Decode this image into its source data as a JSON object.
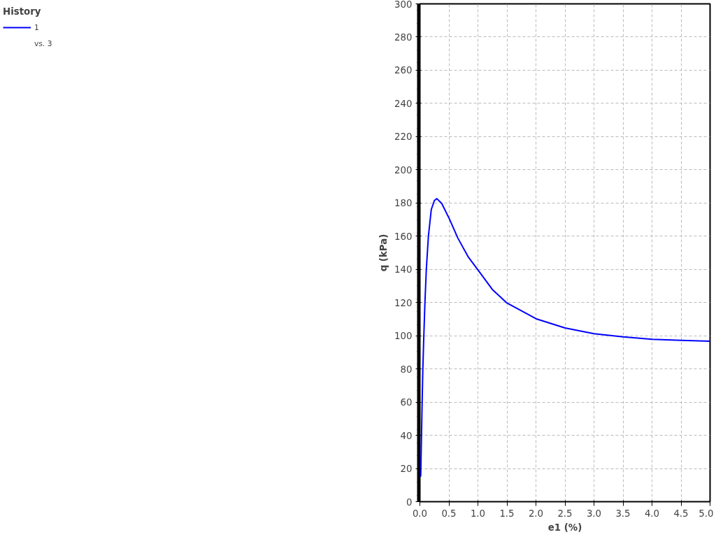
{
  "chart_data": {
    "type": "line",
    "xlabel": "e1 (%)",
    "ylabel": "q (kPa)",
    "legend_title": "History",
    "annotations": [
      "vs. 3"
    ],
    "x": [
      0.007,
      0.015,
      0.027,
      0.039,
      0.051,
      0.068,
      0.087,
      0.111,
      0.147,
      0.196,
      0.25,
      0.293,
      0.377,
      0.51,
      0.655,
      0.837,
      1.006,
      1.248,
      1.502,
      2.005,
      2.5,
      3.0,
      3.5,
      4.0,
      4.5,
      5.0
    ],
    "series": [
      {
        "name": "1",
        "color": "#0000ff",
        "values": [
          15,
          15.7,
          38,
          59.6,
          80,
          99.8,
          120,
          140,
          160,
          176,
          181.5,
          182.6,
          179.7,
          170.3,
          158.8,
          147.3,
          139.4,
          127.9,
          119.7,
          110.2,
          104.7,
          101.2,
          99.3,
          97.9,
          97.2,
          96.7
        ]
      }
    ],
    "xlim": [
      0,
      5
    ],
    "ylim": [
      0,
      300
    ],
    "xticks": [
      {
        "value": 0,
        "label": "0.0"
      },
      0.5,
      {
        "value": 1,
        "label": "1.0"
      },
      1.5,
      {
        "value": 2,
        "label": "2.0"
      },
      2.5,
      {
        "value": 3,
        "label": "3.0"
      },
      3.5,
      {
        "value": 4,
        "label": "4.0"
      },
      4.5,
      {
        "value": 5,
        "label": "5.0"
      }
    ],
    "yticks": [
      0,
      20,
      40,
      60,
      80,
      100,
      120,
      140,
      160,
      180,
      200,
      220,
      240,
      260,
      280,
      300
    ],
    "grid": true,
    "legend": "left",
    "line_style": "solid",
    "marker": "none"
  }
}
